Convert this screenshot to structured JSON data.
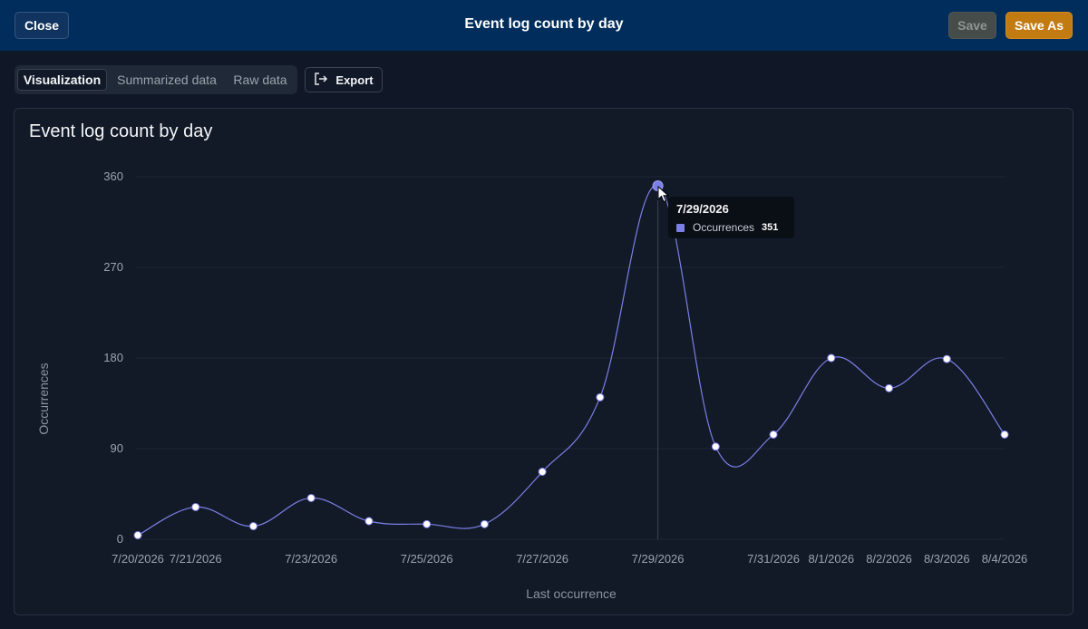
{
  "header": {
    "title": "Event log count by day",
    "close_label": "Close",
    "save_label": "Save",
    "save_as_label": "Save As"
  },
  "tabs": [
    {
      "label": "Visualization",
      "active": true
    },
    {
      "label": "Summarized data",
      "active": false
    },
    {
      "label": "Raw data",
      "active": false
    }
  ],
  "export_label": "Export",
  "icons": {
    "export": "export-icon"
  },
  "colors": {
    "line": "#7b7fe6",
    "header_bg": "#002d5c",
    "save_as_bg": "#c27b10"
  },
  "chart_data": {
    "type": "line",
    "title": "Event log count by day",
    "xlabel": "Last occurrence",
    "ylabel": "Occurrences",
    "ylim": [
      0,
      360
    ],
    "yticks": [
      0,
      90,
      180,
      270,
      360
    ],
    "x": [
      "7/20/2026",
      "7/21/2026",
      "7/22/2026",
      "7/23/2026",
      "7/24/2026",
      "7/25/2026",
      "7/26/2026",
      "7/27/2026",
      "7/28/2026",
      "7/29/2026",
      "7/30/2026",
      "7/31/2026",
      "8/1/2026",
      "8/2/2026",
      "8/3/2026",
      "8/4/2026"
    ],
    "xticks_shown": [
      "7/20/2026",
      "7/21/2026",
      "7/23/2026",
      "7/25/2026",
      "7/27/2026",
      "7/29/2026",
      "7/31/2026",
      "8/1/2026",
      "8/2/2026",
      "8/3/2026",
      "8/4/2026"
    ],
    "series": [
      {
        "name": "Occurrences",
        "values": [
          4,
          32,
          13,
          41,
          18,
          15,
          15,
          67,
          141,
          351,
          92,
          104,
          180,
          150,
          179,
          104
        ]
      }
    ],
    "grid": true
  },
  "tooltip": {
    "date": "7/29/2026",
    "series": "Occurrences",
    "value": "351"
  }
}
